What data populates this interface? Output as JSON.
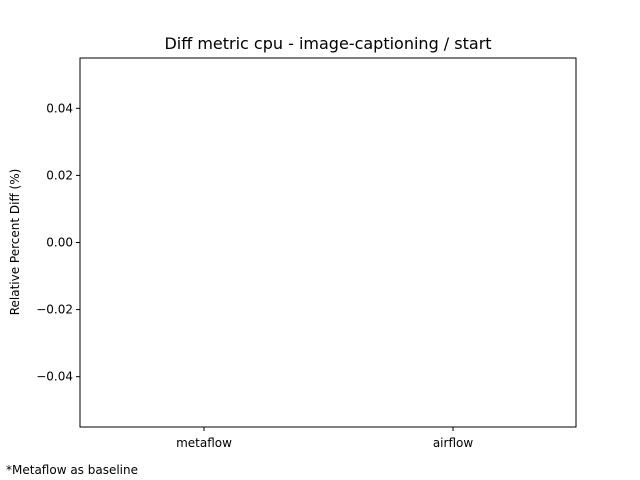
{
  "chart_data": {
    "type": "bar",
    "title": "Diff metric cpu - image-captioning / start",
    "xlabel": "",
    "ylabel": "Relative Percent Diff (%)",
    "categories": [
      "metaflow",
      "airflow"
    ],
    "values": [
      0,
      0
    ],
    "ylim": [
      -0.055,
      0.055
    ],
    "yticks": [
      {
        "value": 0.04,
        "label": "0.04"
      },
      {
        "value": 0.02,
        "label": "0.02"
      },
      {
        "value": 0.0,
        "label": "0.00"
      },
      {
        "value": -0.02,
        "label": "−0.02"
      },
      {
        "value": -0.04,
        "label": "−0.04"
      }
    ],
    "grid": false,
    "legend": "none",
    "bar_color": "#1f77b4",
    "footnote": "*Metaflow as baseline"
  }
}
